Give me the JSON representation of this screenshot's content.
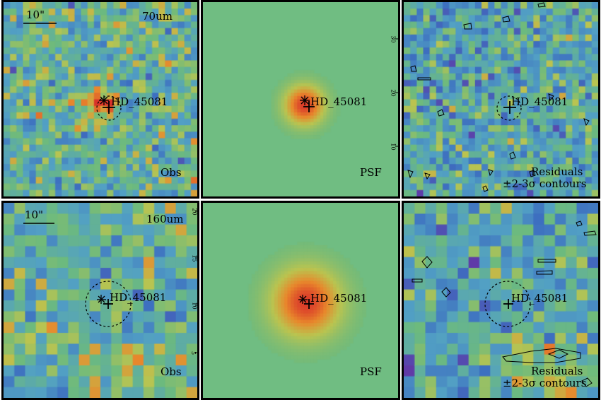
{
  "source_name": "HD_45081",
  "scale_bar_label": "10\"",
  "rows": [
    {
      "band": "70um",
      "panels": [
        {
          "kind": "obs",
          "label": "Obs"
        },
        {
          "kind": "psf",
          "label": "PSF",
          "axis_ticks": [
            "30",
            "20",
            "10"
          ]
        },
        {
          "kind": "residual",
          "label_line1": "Residuals",
          "label_line2": "±2-3σ contours"
        }
      ]
    },
    {
      "band": "160um",
      "panels": [
        {
          "kind": "obs",
          "label": "Obs",
          "axis_ticks": [
            "20",
            "15",
            "10",
            "5"
          ]
        },
        {
          "kind": "psf",
          "label": "PSF"
        },
        {
          "kind": "residual",
          "label_line1": "Residuals",
          "label_line2": "±2-3σ contours"
        }
      ]
    }
  ],
  "colors": {
    "map_mid": "#6cba7e",
    "map_low": "#3d6fc0",
    "map_high": "#e8882c",
    "map_peak": "#d9312a",
    "map_min": "#6a2aa0"
  }
}
